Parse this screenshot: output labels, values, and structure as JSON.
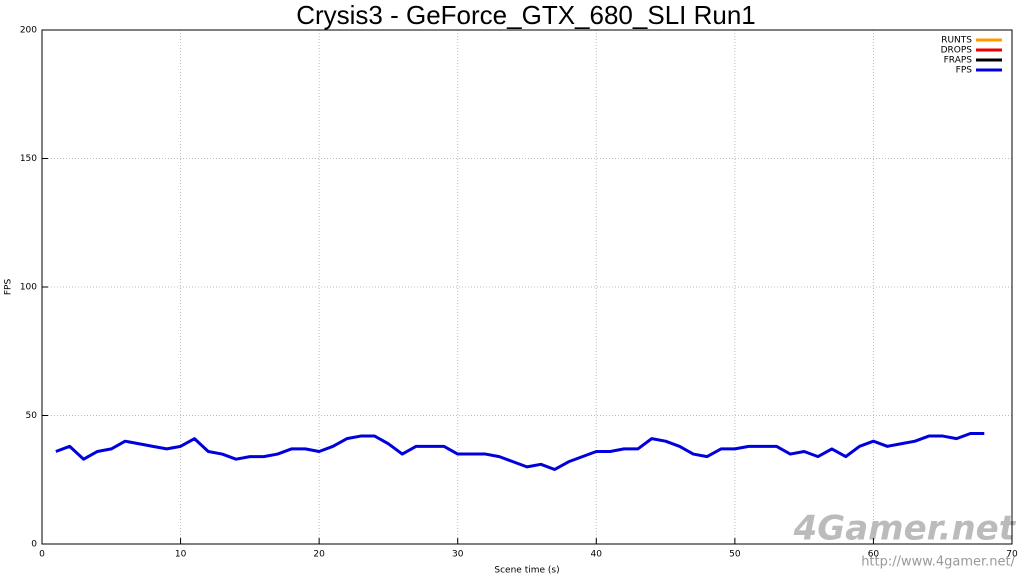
{
  "chart_data": {
    "type": "line",
    "title": "Crysis3 - GeForce_GTX_680_SLI Run1",
    "x_label": "Scene time (s)",
    "y_label": "FPS",
    "x": [
      1,
      2,
      3,
      4,
      5,
      6,
      7,
      8,
      9,
      10,
      11,
      12,
      13,
      14,
      15,
      16,
      17,
      18,
      19,
      20,
      21,
      22,
      23,
      24,
      25,
      26,
      27,
      28,
      29,
      30,
      31,
      32,
      33,
      34,
      35,
      36,
      37,
      38,
      39,
      40,
      41,
      42,
      43,
      44,
      45,
      46,
      47,
      48,
      49,
      50,
      51,
      52,
      53,
      54,
      55,
      56,
      57,
      58,
      59,
      60,
      61,
      62,
      63,
      64,
      65,
      66,
      67,
      68
    ],
    "series": [
      {
        "name": "RUNTS",
        "color": "#ff9900"
      },
      {
        "name": "DROPS",
        "color": "#ee0000"
      },
      {
        "name": "FRAPS",
        "color": "#000000"
      },
      {
        "name": "FPS",
        "color": "#0000dd",
        "values": [
          36,
          38,
          33,
          36,
          37,
          40,
          39,
          38,
          37,
          38,
          41,
          36,
          35,
          33,
          34,
          34,
          35,
          37,
          37,
          36,
          38,
          41,
          42,
          42,
          39,
          35,
          38,
          38,
          38,
          35,
          35,
          35,
          34,
          32,
          30,
          31,
          29,
          32,
          34,
          36,
          36,
          37,
          37,
          41,
          40,
          38,
          35,
          34,
          37,
          37,
          38,
          38,
          38,
          35,
          36,
          34,
          37,
          34,
          38,
          40,
          38,
          39,
          40,
          42,
          42,
          41,
          43,
          43
        ]
      }
    ],
    "xlim": [
      0,
      70
    ],
    "xticks": [
      0,
      10,
      20,
      30,
      40,
      50,
      60,
      70
    ],
    "ylim": [
      0,
      200
    ],
    "yticks": [
      0,
      50,
      100,
      150,
      200
    ],
    "grid": true,
    "legend_position": "top-right",
    "watermark": "4Gamer.net",
    "watermark_url": "http://www.4gamer.net/"
  }
}
